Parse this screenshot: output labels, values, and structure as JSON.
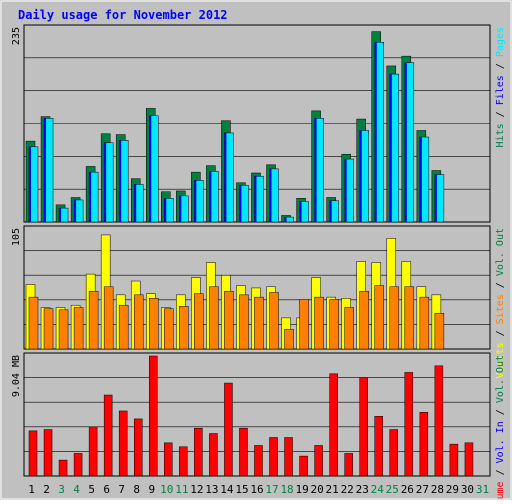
{
  "chart_data": [
    {
      "type": "bar",
      "title": "Daily usage for November 2012",
      "ymax_label": "235",
      "series_labels": [
        "Hits",
        "Files",
        "Pages"
      ],
      "series": [
        {
          "name": "Hits",
          "color": "#008040",
          "values": [
            99,
            129,
            21,
            30,
            68,
            108,
            107,
            53,
            139,
            37,
            38,
            61,
            69,
            124,
            48,
            60,
            70,
            8,
            29,
            136,
            30,
            83,
            126,
            233,
            191,
            203,
            112,
            63,
            0,
            0
          ]
        },
        {
          "name": "Files",
          "color": "#0000ff",
          "values": [
            92,
            127,
            17,
            27,
            61,
            97,
            100,
            46,
            130,
            29,
            32,
            51,
            62,
            109,
            45,
            56,
            65,
            6,
            25,
            127,
            26,
            77,
            112,
            220,
            181,
            195,
            104,
            58,
            0,
            0
          ]
        },
        {
          "name": "Pages",
          "color": "#00e8ff",
          "values": [
            92,
            127,
            17,
            27,
            61,
            97,
            100,
            46,
            130,
            29,
            32,
            51,
            62,
            109,
            45,
            56,
            65,
            6,
            25,
            127,
            26,
            77,
            112,
            220,
            181,
            195,
            104,
            58,
            0,
            0
          ]
        }
      ],
      "ylim": [
        0,
        235
      ]
    },
    {
      "type": "bar",
      "ymax_label": "105",
      "series_labels": [
        "Visits",
        "Sites",
        "Vol. Out"
      ],
      "series": [
        {
          "name": "Visits",
          "color": "#ffff00",
          "values": [
            56,
            36,
            36,
            38,
            65,
            99,
            47,
            59,
            48,
            36,
            47,
            62,
            75,
            64,
            55,
            53,
            54,
            27,
            27,
            62,
            45,
            44,
            76,
            75,
            96,
            76,
            54,
            47,
            0,
            0
          ]
        },
        {
          "name": "Sites",
          "color": "#ff8000",
          "values": [
            45,
            35,
            34,
            36,
            50,
            54,
            38,
            47,
            44,
            35,
            37,
            48,
            54,
            50,
            47,
            45,
            49,
            17,
            43,
            45,
            43,
            36,
            50,
            55,
            54,
            54,
            45,
            31,
            0,
            0
          ]
        }
      ],
      "ylim": [
        0,
        105
      ]
    },
    {
      "type": "bar",
      "ymax_label": "9.04 MB",
      "series_labels": [
        "Volume",
        "Vol. In",
        "Vol. Out"
      ],
      "series": [
        {
          "name": "Volume",
          "color": "#ff0000",
          "values": [
            3.4,
            3.5,
            1.2,
            1.7,
            3.7,
            6.1,
            4.9,
            4.3,
            9.04,
            2.5,
            2.2,
            3.6,
            3.2,
            7.0,
            3.6,
            2.3,
            2.9,
            2.9,
            1.5,
            2.3,
            7.7,
            1.7,
            7.4,
            4.5,
            3.5,
            7.8,
            4.8,
            8.3,
            2.4,
            2.5
          ]
        }
      ],
      "ylim": [
        0,
        9.04
      ]
    }
  ],
  "x_labels": [
    "1",
    "2",
    "3",
    "4",
    "5",
    "6",
    "7",
    "8",
    "9",
    "10",
    "11",
    "12",
    "13",
    "14",
    "15",
    "16",
    "17",
    "18",
    "19",
    "20",
    "21",
    "22",
    "23",
    "24",
    "25",
    "26",
    "27",
    "28",
    "29",
    "30",
    "31"
  ],
  "x_label_colors": [
    "#000",
    "#000",
    "#008040",
    "#008040",
    "#000",
    "#000",
    "#000",
    "#000",
    "#000",
    "#008040",
    "#008040",
    "#000",
    "#000",
    "#000",
    "#000",
    "#000",
    "#008040",
    "#008040",
    "#000",
    "#000",
    "#000",
    "#000",
    "#000",
    "#008040",
    "#008040",
    "#000",
    "#000",
    "#000",
    "#000",
    "#000",
    "#008040"
  ],
  "right_legend": {
    "panel1": [
      {
        "text": "Hits",
        "color": "#008040"
      },
      {
        "text": " / ",
        "color": "#000"
      },
      {
        "text": "Files",
        "color": "#0000ff"
      },
      {
        "text": " / ",
        "color": "#000"
      },
      {
        "text": "Pages",
        "color": "#00e8ff"
      }
    ],
    "panel2": [
      {
        "text": "Visits",
        "color": "#ffff00"
      },
      {
        "text": " / ",
        "color": "#000"
      },
      {
        "text": "Sites",
        "color": "#ff8000"
      },
      {
        "text": " / ",
        "color": "#000"
      },
      {
        "text": "Vol. Out",
        "color": "#008040"
      }
    ],
    "panel3": [
      {
        "text": "Volume",
        "color": "#ff0000"
      },
      {
        "text": " / ",
        "color": "#000"
      },
      {
        "text": "Vol. In",
        "color": "#0000ff"
      },
      {
        "text": " / ",
        "color": "#000"
      },
      {
        "text": "Vol. Out",
        "color": "#008040"
      }
    ]
  },
  "colors": {
    "background": "#c0c0c0",
    "grid": "#000000",
    "title": "#0000ff"
  }
}
